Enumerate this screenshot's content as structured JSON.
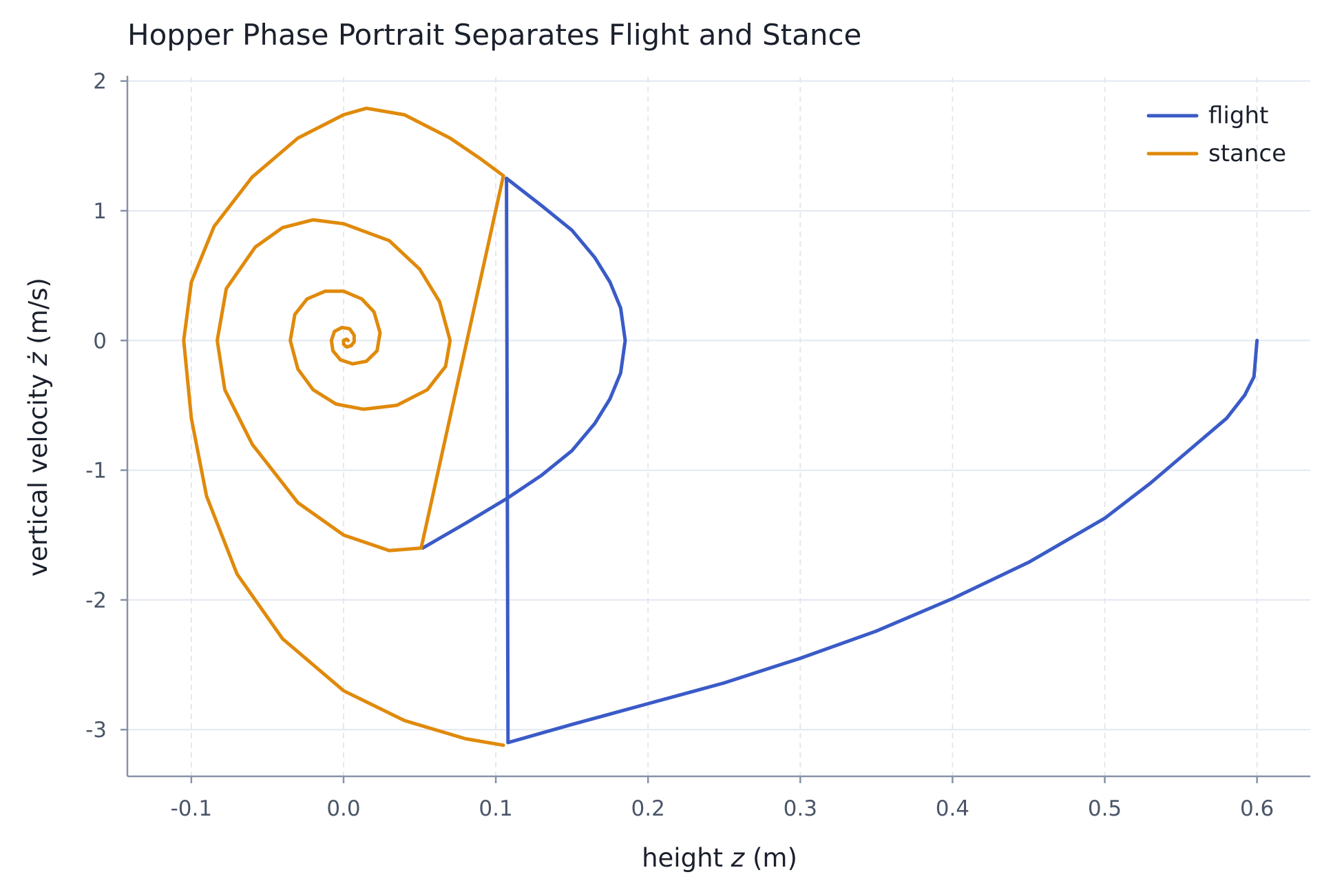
{
  "chart_data": {
    "type": "line",
    "title": "Hopper Phase Portrait Separates Flight and Stance",
    "xlabel_prefix": "height ",
    "xlabel_var": "z",
    "xlabel_suffix": " (m)",
    "ylabel_prefix": "vertical velocity ",
    "ylabel_var": "ż",
    "ylabel_suffix": " (m/s)",
    "xlim": [
      -0.142,
      0.635
    ],
    "ylim": [
      -3.36,
      2.03
    ],
    "x_ticks": [
      -0.1,
      0.0,
      0.1,
      0.2,
      0.3,
      0.4,
      0.5,
      0.6
    ],
    "x_tick_labels": [
      "-0.1",
      "0.0",
      "0.1",
      "0.2",
      "0.3",
      "0.4",
      "0.5",
      "0.6"
    ],
    "y_ticks": [
      2,
      1,
      0,
      -1,
      -2,
      -3
    ],
    "y_tick_labels": [
      "2",
      "1",
      "0",
      "-1",
      "-2",
      "-3"
    ],
    "grid": true,
    "legend_position": "top-right",
    "series": [
      {
        "name": "flight",
        "color": "#3a5bc7",
        "segments": [
          [
            [
              0.6,
              0.0
            ],
            [
              0.598,
              -0.28
            ],
            [
              0.592,
              -0.42
            ],
            [
              0.58,
              -0.6
            ],
            [
              0.56,
              -0.8
            ],
            [
              0.53,
              -1.1
            ],
            [
              0.5,
              -1.37
            ],
            [
              0.45,
              -1.71
            ],
            [
              0.4,
              -1.99
            ],
            [
              0.35,
              -2.24
            ],
            [
              0.3,
              -2.45
            ],
            [
              0.25,
              -2.64
            ],
            [
              0.2,
              -2.8
            ],
            [
              0.15,
              -2.96
            ],
            [
              0.108,
              -3.1
            ]
          ],
          [
            [
              0.108,
              -3.1
            ],
            [
              0.107,
              1.25
            ]
          ],
          [
            [
              0.107,
              1.25
            ],
            [
              0.13,
              1.04
            ],
            [
              0.15,
              0.85
            ],
            [
              0.165,
              0.64
            ],
            [
              0.175,
              0.45
            ],
            [
              0.182,
              0.25
            ],
            [
              0.185,
              0.0
            ],
            [
              0.182,
              -0.25
            ],
            [
              0.175,
              -0.45
            ],
            [
              0.165,
              -0.64
            ],
            [
              0.15,
              -0.85
            ],
            [
              0.13,
              -1.04
            ],
            [
              0.107,
              -1.22
            ],
            [
              0.08,
              -1.41
            ],
            [
              0.052,
              -1.6
            ]
          ]
        ]
      },
      {
        "name": "stance",
        "color": "#e08a0b",
        "segments": [
          [
            [
              0.105,
              -3.12
            ],
            [
              0.08,
              -3.07
            ],
            [
              0.04,
              -2.93
            ],
            [
              0.0,
              -2.7
            ],
            [
              -0.04,
              -2.3
            ],
            [
              -0.07,
              -1.8
            ],
            [
              -0.09,
              -1.2
            ],
            [
              -0.1,
              -0.6
            ],
            [
              -0.105,
              0.0
            ],
            [
              -0.1,
              0.45
            ],
            [
              -0.085,
              0.88
            ],
            [
              -0.06,
              1.26
            ],
            [
              -0.03,
              1.56
            ],
            [
              0.0,
              1.74
            ],
            [
              0.015,
              1.79
            ],
            [
              0.04,
              1.74
            ],
            [
              0.07,
              1.56
            ],
            [
              0.09,
              1.4
            ],
            [
              0.105,
              1.27
            ]
          ],
          [
            [
              0.105,
              1.27
            ],
            [
              0.051,
              -1.6
            ]
          ],
          [
            [
              0.051,
              -1.6
            ],
            [
              0.03,
              -1.62
            ],
            [
              0.0,
              -1.5
            ],
            [
              -0.03,
              -1.25
            ],
            [
              -0.06,
              -0.8
            ],
            [
              -0.078,
              -0.38
            ],
            [
              -0.083,
              0.0
            ],
            [
              -0.077,
              0.4
            ],
            [
              -0.058,
              0.72
            ],
            [
              -0.04,
              0.87
            ],
            [
              -0.02,
              0.93
            ],
            [
              0.0,
              0.9
            ],
            [
              0.03,
              0.77
            ],
            [
              0.05,
              0.55
            ],
            [
              0.063,
              0.3
            ],
            [
              0.07,
              0.0
            ],
            [
              0.067,
              -0.2
            ],
            [
              0.055,
              -0.38
            ],
            [
              0.035,
              -0.5
            ],
            [
              0.013,
              -0.53
            ],
            [
              -0.005,
              -0.49
            ],
            [
              -0.02,
              -0.38
            ],
            [
              -0.03,
              -0.22
            ],
            [
              -0.035,
              0.0
            ],
            [
              -0.032,
              0.2
            ],
            [
              -0.024,
              0.32
            ],
            [
              -0.012,
              0.38
            ],
            [
              0.0,
              0.38
            ],
            [
              0.012,
              0.32
            ],
            [
              0.02,
              0.22
            ],
            [
              0.024,
              0.06
            ],
            [
              0.022,
              -0.08
            ],
            [
              0.015,
              -0.16
            ],
            [
              0.006,
              -0.18
            ],
            [
              -0.002,
              -0.15
            ],
            [
              -0.007,
              -0.08
            ],
            [
              -0.008,
              0.0
            ],
            [
              -0.006,
              0.07
            ],
            [
              -0.001,
              0.1
            ],
            [
              0.004,
              0.09
            ],
            [
              0.007,
              0.04
            ],
            [
              0.007,
              -0.01
            ],
            [
              0.005,
              -0.04
            ],
            [
              0.002,
              -0.05
            ],
            [
              0.0,
              -0.03
            ],
            [
              0.0,
              0.0
            ],
            [
              0.002,
              0.01
            ],
            [
              0.003,
              0.0
            ]
          ]
        ]
      }
    ]
  }
}
